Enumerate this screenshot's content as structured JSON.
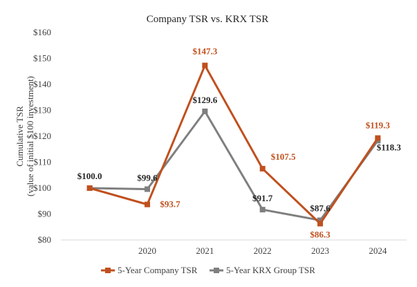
{
  "chart_data": {
    "type": "line",
    "title": "Company TSR vs. KRX TSR",
    "ylabel_lines": [
      "Cumulative TSR",
      "(value of initial $100 investment)"
    ],
    "xlabel": "",
    "x": [
      "",
      "2020",
      "2021",
      "2022",
      "2023",
      "2024"
    ],
    "ylim": [
      80,
      160
    ],
    "yticks": [
      80,
      90,
      100,
      110,
      120,
      130,
      140,
      150,
      160
    ],
    "ytick_labels": [
      "$80",
      "$90",
      "$100",
      "$110",
      "$120",
      "$130",
      "$140",
      "$150",
      "$160"
    ],
    "grid": false,
    "legend_position": "bottom",
    "series": [
      {
        "name": "5-Year Company TSR",
        "color": "#C0501E",
        "values": [
          100.0,
          93.7,
          147.3,
          107.5,
          86.3,
          119.3
        ],
        "labels": [
          "$100.0",
          "$93.7",
          "$147.3",
          "$107.5",
          "$86.3",
          "$119.3"
        ]
      },
      {
        "name": "5-Year KRX Group TSR",
        "color": "#7F7F7F",
        "values": [
          100.0,
          99.6,
          129.6,
          91.7,
          87.6,
          118.3
        ],
        "labels": [
          "",
          "$99.6",
          "$129.6",
          "$91.7",
          "$87.6",
          "$118.3"
        ]
      }
    ]
  }
}
